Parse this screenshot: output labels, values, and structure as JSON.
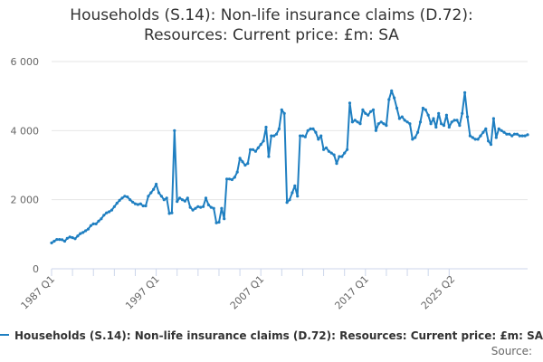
{
  "title_lines": [
    "Households (S.14): Non-life insurance claims (D.72):",
    "Resources: Current price: £m: SA"
  ],
  "legend_label": "Households (S.14): Non-life insurance claims (D.72): Resources: Current price: £m: SA",
  "source_label": "Source:",
  "colors": {
    "series": "#1f7fc1",
    "grid": "#e6e6e6",
    "axis": "#ccd6eb"
  },
  "chart_data": {
    "type": "line",
    "title": "Households (S.14): Non-life insurance claims (D.72): Resources: Current price: £m: SA",
    "xlabel": "",
    "ylabel": "",
    "x_ticks": [
      "1987 Q1",
      "1997 Q1",
      "2007 Q1",
      "2017 Q1",
      "2025 Q2"
    ],
    "y_ticks": [
      "0",
      "2 000",
      "4 000",
      "6 000"
    ],
    "ylim": [
      0,
      6000
    ],
    "grid": true,
    "legend": "bottom",
    "series": [
      {
        "name": "Households (S.14): Non-life insurance claims (D.72): Resources: Current price: £m: SA",
        "start": "1987 Q1",
        "frequency": "quarterly",
        "values": [
          750,
          800,
          850,
          850,
          840,
          800,
          880,
          920,
          900,
          870,
          950,
          1020,
          1050,
          1100,
          1150,
          1250,
          1300,
          1300,
          1380,
          1450,
          1550,
          1620,
          1650,
          1700,
          1800,
          1900,
          1980,
          2050,
          2100,
          2080,
          2000,
          1930,
          1880,
          1860,
          1880,
          1820,
          1820,
          2100,
          2200,
          2300,
          2450,
          2200,
          2100,
          2000,
          2050,
          1600,
          1620,
          4000,
          1950,
          2050,
          2000,
          1960,
          2050,
          1780,
          1700,
          1750,
          1800,
          1780,
          1800,
          2050,
          1850,
          1780,
          1750,
          1330,
          1350,
          1750,
          1450,
          2600,
          2600,
          2580,
          2650,
          2800,
          3200,
          3100,
          3000,
          3050,
          3450,
          3450,
          3400,
          3500,
          3600,
          3700,
          4100,
          3250,
          3850,
          3850,
          3900,
          4050,
          4600,
          4500,
          1920,
          2000,
          2200,
          2400,
          2100,
          3850,
          3850,
          3820,
          4000,
          4050,
          4050,
          3950,
          3750,
          3850,
          3450,
          3500,
          3400,
          3350,
          3300,
          3050,
          3250,
          3250,
          3350,
          3450,
          4800,
          4250,
          4300,
          4250,
          4200,
          4600,
          4500,
          4450,
          4550,
          4600,
          4000,
          4200,
          4250,
          4200,
          4150,
          4900,
          5150,
          4950,
          4650,
          4350,
          4400,
          4300,
          4250,
          4200,
          3750,
          3800,
          3950,
          4250,
          4650,
          4600,
          4450,
          4200,
          4350,
          4100,
          4500,
          4200,
          4150,
          4450,
          4100,
          4250,
          4300,
          4300,
          4150,
          4500,
          5100,
          4400,
          3850,
          3800,
          3750,
          3750,
          3850,
          3950,
          4050,
          3700,
          3600,
          4350,
          3800,
          4050,
          4000,
          3950,
          3900,
          3900,
          3850,
          3900,
          3900,
          3850,
          3850,
          3850,
          3880
        ]
      }
    ]
  }
}
